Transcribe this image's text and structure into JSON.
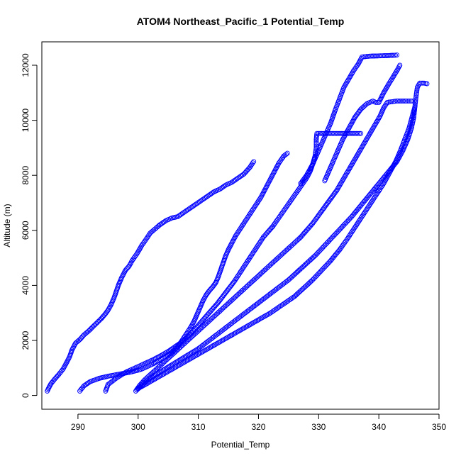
{
  "chart_data": {
    "type": "scatter",
    "title": "ATOM4 Northeast_Pacific_1 Potential_Temp",
    "xlabel": "Potential_Temp",
    "ylabel": "Altitude (m)",
    "xlim": [
      284,
      350
    ],
    "ylim": [
      -500,
      12850
    ],
    "xticks": [
      "290",
      "300",
      "310",
      "320",
      "330",
      "340",
      "350"
    ],
    "yticks": [
      "0",
      "2000",
      "4000",
      "6000",
      "8000",
      "10000",
      "12000"
    ],
    "marker": "open-circle",
    "color": "#0000ff",
    "series": [
      {
        "points": [
          [
            284.9,
            160
          ],
          [
            285.2,
            300
          ],
          [
            285.5,
            420
          ],
          [
            286.0,
            560
          ],
          [
            286.8,
            760
          ],
          [
            287.5,
            950
          ],
          [
            288.0,
            1150
          ],
          [
            288.6,
            1400
          ],
          [
            289.0,
            1650
          ],
          [
            289.6,
            1900
          ],
          [
            290.4,
            2050
          ],
          [
            291.0,
            2200
          ],
          [
            291.8,
            2350
          ],
          [
            292.5,
            2500
          ],
          [
            293.2,
            2650
          ],
          [
            293.9,
            2800
          ],
          [
            294.5,
            2950
          ],
          [
            295.0,
            3100
          ],
          [
            295.5,
            3300
          ],
          [
            296.0,
            3550
          ],
          [
            296.4,
            3800
          ],
          [
            296.8,
            4050
          ],
          [
            297.3,
            4300
          ],
          [
            297.9,
            4550
          ],
          [
            298.5,
            4700
          ],
          [
            299.0,
            4900
          ],
          [
            299.8,
            5150
          ],
          [
            300.6,
            5450
          ],
          [
            301.4,
            5700
          ],
          [
            302.0,
            5900
          ],
          [
            302.8,
            6050
          ],
          [
            303.6,
            6200
          ],
          [
            304.6,
            6350
          ],
          [
            305.6,
            6450
          ],
          [
            306.6,
            6500
          ],
          [
            307.6,
            6650
          ],
          [
            308.6,
            6800
          ],
          [
            309.6,
            6950
          ],
          [
            310.6,
            7100
          ],
          [
            311.6,
            7250
          ],
          [
            312.6,
            7400
          ],
          [
            313.6,
            7500
          ],
          [
            314.6,
            7650
          ],
          [
            315.6,
            7750
          ],
          [
            316.6,
            7900
          ],
          [
            317.6,
            8050
          ],
          [
            318.6,
            8300
          ],
          [
            319.2,
            8500
          ]
        ]
      },
      {
        "points": [
          [
            290.3,
            160
          ],
          [
            291.0,
            350
          ],
          [
            292.0,
            500
          ],
          [
            293.5,
            620
          ],
          [
            295.0,
            700
          ],
          [
            297.0,
            780
          ],
          [
            299.0,
            860
          ],
          [
            300.5,
            950
          ],
          [
            301.5,
            1050
          ],
          [
            302.5,
            1150
          ],
          [
            303.5,
            1280
          ],
          [
            304.5,
            1400
          ],
          [
            305.5,
            1550
          ],
          [
            306.3,
            1700
          ],
          [
            307.0,
            1900
          ],
          [
            307.6,
            2100
          ],
          [
            308.2,
            2300
          ],
          [
            308.8,
            2500
          ],
          [
            309.3,
            2700
          ],
          [
            309.8,
            2950
          ],
          [
            310.3,
            3200
          ],
          [
            310.8,
            3450
          ],
          [
            311.3,
            3650
          ],
          [
            311.8,
            3800
          ],
          [
            312.4,
            3950
          ],
          [
            312.9,
            4100
          ],
          [
            313.3,
            4300
          ],
          [
            313.7,
            4550
          ],
          [
            314.1,
            4800
          ],
          [
            314.5,
            5050
          ],
          [
            315.0,
            5300
          ],
          [
            315.6,
            5550
          ],
          [
            316.2,
            5800
          ],
          [
            316.8,
            6000
          ],
          [
            317.4,
            6200
          ],
          [
            318.0,
            6400
          ],
          [
            318.6,
            6600
          ],
          [
            319.2,
            6800
          ],
          [
            319.8,
            7000
          ],
          [
            320.4,
            7200
          ],
          [
            321.0,
            7450
          ],
          [
            321.6,
            7700
          ],
          [
            322.2,
            7950
          ],
          [
            322.8,
            8200
          ],
          [
            323.4,
            8450
          ],
          [
            324.2,
            8700
          ],
          [
            324.8,
            8800
          ]
        ]
      },
      {
        "points": [
          [
            294.6,
            160
          ],
          [
            295.0,
            400
          ],
          [
            296.5,
            650
          ],
          [
            298.0,
            850
          ],
          [
            299.5,
            1000
          ],
          [
            301.0,
            1150
          ],
          [
            302.5,
            1300
          ],
          [
            303.8,
            1450
          ],
          [
            305.0,
            1600
          ],
          [
            306.2,
            1780
          ],
          [
            307.3,
            1950
          ],
          [
            308.3,
            2150
          ],
          [
            309.2,
            2350
          ],
          [
            310.0,
            2550
          ],
          [
            310.8,
            2750
          ],
          [
            311.6,
            2950
          ],
          [
            312.4,
            3150
          ],
          [
            313.2,
            3350
          ],
          [
            313.9,
            3550
          ],
          [
            314.6,
            3750
          ],
          [
            315.3,
            3950
          ],
          [
            316.0,
            4150
          ],
          [
            316.6,
            4350
          ],
          [
            317.2,
            4550
          ],
          [
            317.8,
            4750
          ],
          [
            318.4,
            4950
          ],
          [
            319.0,
            5150
          ],
          [
            319.6,
            5350
          ],
          [
            320.2,
            5550
          ],
          [
            320.8,
            5750
          ],
          [
            321.6,
            5950
          ],
          [
            322.4,
            6150
          ],
          [
            323.2,
            6400
          ],
          [
            324.0,
            6650
          ],
          [
            324.8,
            6900
          ],
          [
            325.6,
            7150
          ],
          [
            326.4,
            7400
          ],
          [
            327.2,
            7650
          ],
          [
            328.0,
            7900
          ],
          [
            328.6,
            8150
          ],
          [
            329.0,
            8400
          ],
          [
            329.4,
            8700
          ],
          [
            329.6,
            9000
          ],
          [
            329.6,
            9300
          ],
          [
            329.7,
            9520
          ],
          [
            331.0,
            9520
          ],
          [
            332.5,
            9520
          ],
          [
            334.0,
            9520
          ],
          [
            335.5,
            9520
          ],
          [
            337.0,
            9520
          ]
        ]
      },
      {
        "points": [
          [
            299.6,
            160
          ],
          [
            300.2,
            350
          ],
          [
            301.0,
            550
          ],
          [
            302.0,
            750
          ],
          [
            303.0,
            950
          ],
          [
            304.0,
            1150
          ],
          [
            305.0,
            1350
          ],
          [
            306.0,
            1550
          ],
          [
            307.0,
            1750
          ],
          [
            308.0,
            1950
          ],
          [
            309.0,
            2150
          ],
          [
            310.0,
            2350
          ],
          [
            311.0,
            2550
          ],
          [
            312.0,
            2750
          ],
          [
            313.0,
            2950
          ],
          [
            314.0,
            3150
          ],
          [
            315.0,
            3350
          ],
          [
            316.0,
            3550
          ],
          [
            317.0,
            3750
          ],
          [
            318.0,
            3950
          ],
          [
            319.0,
            4150
          ],
          [
            320.0,
            4350
          ],
          [
            321.0,
            4550
          ],
          [
            322.0,
            4750
          ],
          [
            323.0,
            4950
          ],
          [
            324.0,
            5150
          ],
          [
            325.0,
            5350
          ],
          [
            326.0,
            5550
          ],
          [
            327.0,
            5750
          ],
          [
            328.0,
            6000
          ],
          [
            329.0,
            6250
          ],
          [
            330.0,
            6550
          ],
          [
            331.0,
            6850
          ],
          [
            332.0,
            7150
          ],
          [
            333.0,
            7450
          ],
          [
            333.8,
            7750
          ],
          [
            334.6,
            8050
          ],
          [
            335.4,
            8350
          ],
          [
            336.2,
            8650
          ],
          [
            337.0,
            8950
          ],
          [
            337.8,
            9250
          ],
          [
            338.6,
            9550
          ],
          [
            339.4,
            9850
          ],
          [
            340.2,
            10150
          ],
          [
            340.8,
            10450
          ],
          [
            341.4,
            10650
          ],
          [
            343.0,
            10700
          ],
          [
            344.5,
            10700
          ],
          [
            345.6,
            10700
          ]
        ]
      },
      {
        "points": [
          [
            299.8,
            200
          ],
          [
            301.0,
            450
          ],
          [
            302.5,
            700
          ],
          [
            304.0,
            900
          ],
          [
            305.5,
            1100
          ],
          [
            307.0,
            1300
          ],
          [
            308.5,
            1500
          ],
          [
            310.0,
            1700
          ],
          [
            311.5,
            1950
          ],
          [
            313.0,
            2200
          ],
          [
            314.5,
            2450
          ],
          [
            316.0,
            2700
          ],
          [
            317.5,
            2950
          ],
          [
            319.0,
            3200
          ],
          [
            320.5,
            3450
          ],
          [
            322.0,
            3700
          ],
          [
            323.5,
            3950
          ],
          [
            325.0,
            4200
          ],
          [
            326.5,
            4500
          ],
          [
            328.0,
            4800
          ],
          [
            329.5,
            5100
          ],
          [
            331.0,
            5450
          ],
          [
            332.5,
            5800
          ],
          [
            334.0,
            6150
          ],
          [
            335.5,
            6500
          ],
          [
            337.0,
            6900
          ],
          [
            338.5,
            7300
          ],
          [
            340.0,
            7700
          ],
          [
            341.5,
            8100
          ],
          [
            343.0,
            8500
          ],
          [
            344.0,
            8900
          ],
          [
            344.8,
            9300
          ],
          [
            345.4,
            9700
          ],
          [
            345.8,
            10100
          ],
          [
            346.0,
            10500
          ],
          [
            346.2,
            10900
          ],
          [
            346.4,
            11200
          ],
          [
            346.8,
            11350
          ],
          [
            347.5,
            11350
          ],
          [
            348.0,
            11330
          ]
        ]
      },
      {
        "points": [
          [
            300.0,
            250
          ],
          [
            302.0,
            500
          ],
          [
            304.0,
            750
          ],
          [
            306.0,
            1000
          ],
          [
            308.0,
            1250
          ],
          [
            310.0,
            1500
          ],
          [
            312.0,
            1750
          ],
          [
            314.0,
            2000
          ],
          [
            316.0,
            2250
          ],
          [
            318.0,
            2500
          ],
          [
            320.0,
            2750
          ],
          [
            322.0,
            3000
          ],
          [
            324.0,
            3300
          ],
          [
            326.0,
            3600
          ],
          [
            327.5,
            3900
          ],
          [
            329.0,
            4200
          ],
          [
            330.5,
            4550
          ],
          [
            332.0,
            4900
          ],
          [
            333.5,
            5300
          ],
          [
            334.8,
            5700
          ],
          [
            336.0,
            6100
          ],
          [
            337.2,
            6500
          ],
          [
            338.4,
            6900
          ],
          [
            339.6,
            7300
          ],
          [
            340.8,
            7700
          ],
          [
            341.8,
            8100
          ],
          [
            342.8,
            8500
          ],
          [
            343.6,
            8900
          ],
          [
            344.3,
            9300
          ],
          [
            345.0,
            9700
          ],
          [
            345.5,
            10100
          ],
          [
            346.0,
            10500
          ]
        ]
      },
      {
        "points": [
          [
            327.0,
            7700
          ],
          [
            328.0,
            8000
          ],
          [
            329.0,
            8400
          ],
          [
            330.0,
            8900
          ],
          [
            331.0,
            9400
          ],
          [
            332.0,
            9900
          ],
          [
            332.8,
            10400
          ],
          [
            333.5,
            10800
          ],
          [
            334.2,
            11200
          ],
          [
            335.0,
            11500
          ],
          [
            335.8,
            11800
          ],
          [
            336.6,
            12050
          ],
          [
            337.2,
            12300
          ],
          [
            338.5,
            12330
          ],
          [
            340.0,
            12340
          ],
          [
            341.5,
            12350
          ],
          [
            343.0,
            12370
          ]
        ]
      },
      {
        "points": [
          [
            331.0,
            7800
          ],
          [
            332.0,
            8300
          ],
          [
            333.0,
            8800
          ],
          [
            334.0,
            9300
          ],
          [
            335.0,
            9700
          ],
          [
            336.0,
            10100
          ],
          [
            337.0,
            10400
          ],
          [
            338.0,
            10600
          ],
          [
            339.0,
            10700
          ],
          [
            339.5,
            10650
          ],
          [
            340.0,
            10650
          ],
          [
            340.8,
            11000
          ],
          [
            341.6,
            11300
          ],
          [
            342.3,
            11550
          ],
          [
            343.0,
            11800
          ],
          [
            343.5,
            12000
          ]
        ]
      }
    ]
  }
}
